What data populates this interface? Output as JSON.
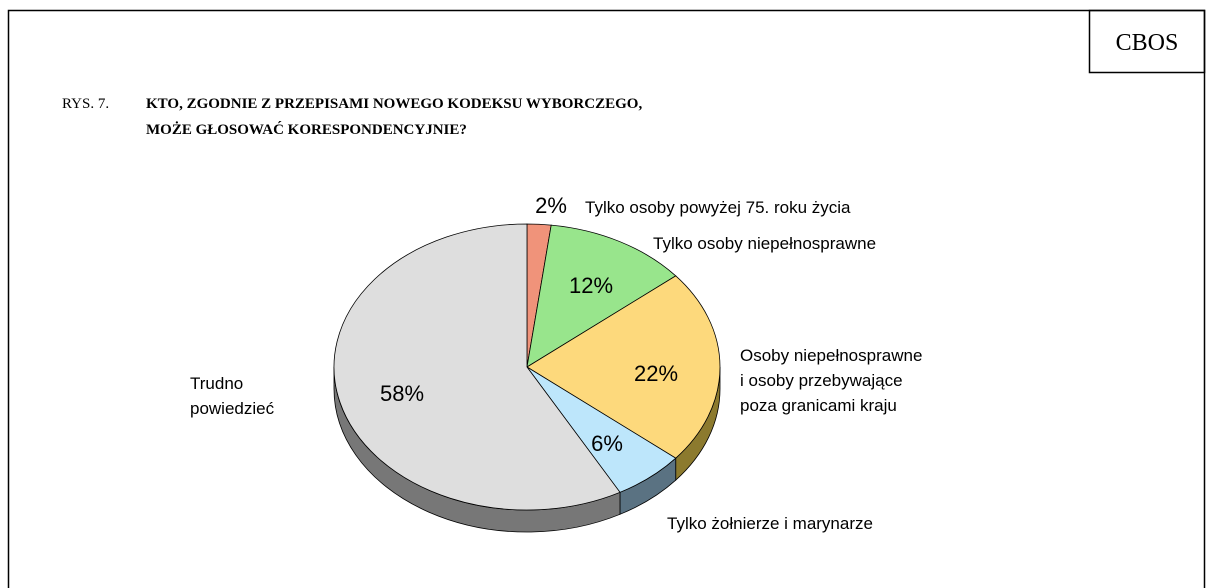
{
  "source": "CBOS",
  "chart_data": {
    "type": "pie3d",
    "figure_label": "RYS. 7.",
    "title": "KTO, ZGODNIE Z PRZEPISAMI NOWEGO KODEKSU WYBORCZEGO,\nMOŻE  GŁOSOWAĆ KORESPONDENCYJNIE?",
    "categories": [
      "Tylko osoby powyżej 75. roku życia",
      "Tylko osoby niepełnosprawne",
      "Osoby niepełnosprawne\ni osoby przebywające\npoza granicami kraju",
      "Tylko żołnierze i marynarze",
      "Trudno\npowiedzieć"
    ],
    "values": [
      2,
      12,
      22,
      6,
      58
    ],
    "value_labels": [
      "2%",
      "12%",
      "22%",
      "6%",
      "58%"
    ],
    "colors": [
      "#f0937a",
      "#98e58c",
      "#fdd97c",
      "#bde6fb",
      "#dedede"
    ],
    "side_colors": [
      "#8a5040",
      "#5a8a50",
      "#8c7a2e",
      "#5a7282",
      "#777777"
    ]
  }
}
